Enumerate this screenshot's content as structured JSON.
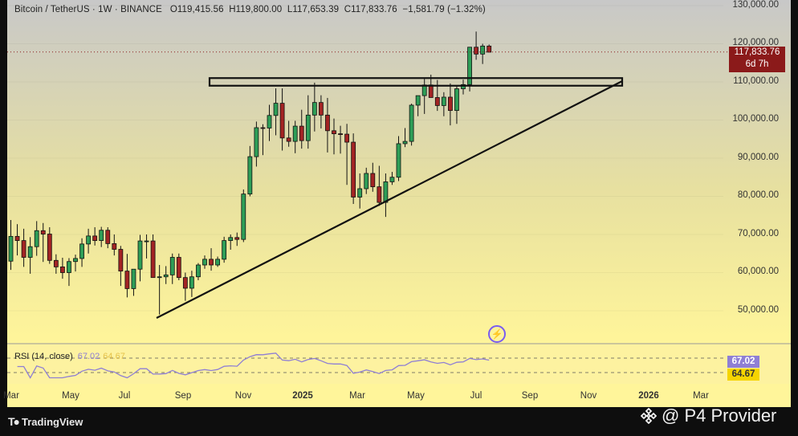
{
  "header": {
    "symbol": "Bitcoin / TetherUS · 1W · BINANCE",
    "open": "O119,415.56",
    "high": "H119,800.00",
    "low": "L117,653.39",
    "close": "C117,833.76",
    "change": "−1,581.79 (−1.32%)"
  },
  "price_tag": {
    "price": "117,833.76",
    "countdown": "6d 7h"
  },
  "rsi": {
    "label": "RSI (14, close)",
    "value": "67.02",
    "ma_value": "64.67",
    "value_num": 67.02,
    "ma_num": 64.67,
    "line_color": "#8f7fd4",
    "ma_color": "#f5d400"
  },
  "x_axis": [
    "Mar",
    "May",
    "Jul",
    "Sep",
    "Nov",
    "2025",
    "Mar",
    "May",
    "Jul",
    "Sep",
    "Nov",
    "2026",
    "Mar"
  ],
  "y_axis": [
    "130,000.00",
    "120,000.00",
    "110,000.00",
    "100,000.00",
    "90,000.00",
    "80,000.00",
    "70,000.00",
    "60,000.00",
    "50,000.00"
  ],
  "footer": {
    "brand": "TradingView",
    "watermark": "@ P4 Provider"
  },
  "colors": {
    "up": "#2e9e57",
    "down": "#a32424",
    "bg_top": "#c8c8c8",
    "bg_bottom": "#fff59a",
    "price_tag": "#8b1a1a"
  },
  "chart_data": {
    "type": "candlestick",
    "interval": "1W",
    "title": "Bitcoin / TetherUS · 1W · BINANCE",
    "ylim": [
      42000,
      133000
    ],
    "x_ticks": [
      "Mar",
      "May",
      "Jul",
      "Sep",
      "Nov",
      "2025",
      "Mar",
      "May",
      "Jul",
      "Sep",
      "Nov",
      "2026",
      "Mar"
    ],
    "candles": [
      {
        "o": 63000,
        "h": 73800,
        "l": 60700,
        "c": 69500
      },
      {
        "o": 69500,
        "h": 72700,
        "l": 64500,
        "c": 68400
      },
      {
        "o": 68400,
        "h": 71500,
        "l": 61500,
        "c": 64000
      },
      {
        "o": 64000,
        "h": 69300,
        "l": 59700,
        "c": 66800
      },
      {
        "o": 66800,
        "h": 73500,
        "l": 64400,
        "c": 71000
      },
      {
        "o": 71000,
        "h": 73000,
        "l": 62800,
        "c": 70100
      },
      {
        "o": 70100,
        "h": 71900,
        "l": 62300,
        "c": 63200
      },
      {
        "o": 63200,
        "h": 64800,
        "l": 59700,
        "c": 61500
      },
      {
        "o": 61500,
        "h": 63900,
        "l": 58400,
        "c": 60000
      },
      {
        "o": 60000,
        "h": 63800,
        "l": 56500,
        "c": 62900
      },
      {
        "o": 62900,
        "h": 64700,
        "l": 60300,
        "c": 63700
      },
      {
        "o": 63700,
        "h": 69000,
        "l": 61500,
        "c": 67500
      },
      {
        "o": 67500,
        "h": 71500,
        "l": 65000,
        "c": 69600
      },
      {
        "o": 69600,
        "h": 71900,
        "l": 67100,
        "c": 68400
      },
      {
        "o": 68400,
        "h": 72000,
        "l": 66700,
        "c": 71100
      },
      {
        "o": 71100,
        "h": 71900,
        "l": 66400,
        "c": 67600
      },
      {
        "o": 67600,
        "h": 70000,
        "l": 64500,
        "c": 66100
      },
      {
        "o": 66100,
        "h": 67000,
        "l": 56500,
        "c": 60400
      },
      {
        "o": 60400,
        "h": 64900,
        "l": 53500,
        "c": 55800
      },
      {
        "o": 55800,
        "h": 60500,
        "l": 53900,
        "c": 60900
      },
      {
        "o": 60900,
        "h": 69900,
        "l": 57700,
        "c": 68300
      },
      {
        "o": 68300,
        "h": 70000,
        "l": 63700,
        "c": 68300
      },
      {
        "o": 68300,
        "h": 70000,
        "l": 59500,
        "c": 58700
      },
      {
        "o": 58700,
        "h": 62000,
        "l": 49000,
        "c": 58900
      },
      {
        "o": 58900,
        "h": 61700,
        "l": 57000,
        "c": 59400
      },
      {
        "o": 59400,
        "h": 65000,
        "l": 57000,
        "c": 64000
      },
      {
        "o": 64000,
        "h": 65000,
        "l": 58000,
        "c": 58700
      },
      {
        "o": 58700,
        "h": 60000,
        "l": 52600,
        "c": 55900
      },
      {
        "o": 55900,
        "h": 60500,
        "l": 53600,
        "c": 58900
      },
      {
        "o": 58900,
        "h": 62500,
        "l": 58000,
        "c": 62000
      },
      {
        "o": 62000,
        "h": 64500,
        "l": 61000,
        "c": 63500
      },
      {
        "o": 63500,
        "h": 66400,
        "l": 60500,
        "c": 62000
      },
      {
        "o": 62000,
        "h": 64200,
        "l": 61500,
        "c": 63500
      },
      {
        "o": 63500,
        "h": 69400,
        "l": 62600,
        "c": 68400
      },
      {
        "o": 68400,
        "h": 70000,
        "l": 66000,
        "c": 69200
      },
      {
        "o": 69200,
        "h": 70500,
        "l": 67000,
        "c": 68700
      },
      {
        "o": 68700,
        "h": 81800,
        "l": 68000,
        "c": 80600
      },
      {
        "o": 80600,
        "h": 93200,
        "l": 80000,
        "c": 90400
      },
      {
        "o": 90400,
        "h": 99600,
        "l": 87800,
        "c": 98000
      },
      {
        "o": 98000,
        "h": 98900,
        "l": 90800,
        "c": 97900
      },
      {
        "o": 97900,
        "h": 104000,
        "l": 94500,
        "c": 101200
      },
      {
        "o": 101200,
        "h": 108300,
        "l": 96000,
        "c": 104400
      },
      {
        "o": 104400,
        "h": 108300,
        "l": 92000,
        "c": 95300
      },
      {
        "o": 95300,
        "h": 99800,
        "l": 93000,
        "c": 94400
      },
      {
        "o": 94400,
        "h": 99800,
        "l": 91300,
        "c": 98400
      },
      {
        "o": 98400,
        "h": 102700,
        "l": 92500,
        "c": 94600
      },
      {
        "o": 94600,
        "h": 106500,
        "l": 92500,
        "c": 101300
      },
      {
        "o": 101300,
        "h": 109800,
        "l": 97000,
        "c": 104600
      },
      {
        "o": 104600,
        "h": 106500,
        "l": 97800,
        "c": 101300
      },
      {
        "o": 101300,
        "h": 105800,
        "l": 91500,
        "c": 97200
      },
      {
        "o": 97200,
        "h": 100400,
        "l": 91000,
        "c": 96400
      },
      {
        "o": 96400,
        "h": 98500,
        "l": 91200,
        "c": 96300
      },
      {
        "o": 96300,
        "h": 99000,
        "l": 83000,
        "c": 94200
      },
      {
        "o": 94200,
        "h": 96500,
        "l": 78000,
        "c": 79800
      },
      {
        "o": 79800,
        "h": 86000,
        "l": 76800,
        "c": 82000
      },
      {
        "o": 82000,
        "h": 87500,
        "l": 80600,
        "c": 86000
      },
      {
        "o": 86000,
        "h": 88800,
        "l": 81200,
        "c": 82500
      },
      {
        "o": 82500,
        "h": 88000,
        "l": 77500,
        "c": 78400
      },
      {
        "o": 78400,
        "h": 86000,
        "l": 74600,
        "c": 83800
      },
      {
        "o": 83800,
        "h": 86400,
        "l": 83000,
        "c": 85000
      },
      {
        "o": 85000,
        "h": 95800,
        "l": 84000,
        "c": 93800
      },
      {
        "o": 93800,
        "h": 97900,
        "l": 92900,
        "c": 94400
      },
      {
        "o": 94400,
        "h": 104300,
        "l": 93300,
        "c": 103900
      },
      {
        "o": 103900,
        "h": 106000,
        "l": 101000,
        "c": 106400
      },
      {
        "o": 106400,
        "h": 110800,
        "l": 101600,
        "c": 109200
      },
      {
        "o": 109200,
        "h": 111900,
        "l": 106000,
        "c": 105900
      },
      {
        "o": 105900,
        "h": 110500,
        "l": 102400,
        "c": 103800
      },
      {
        "o": 103800,
        "h": 107300,
        "l": 101000,
        "c": 106000
      },
      {
        "o": 106000,
        "h": 109600,
        "l": 98600,
        "c": 102500
      },
      {
        "o": 102500,
        "h": 108900,
        "l": 99000,
        "c": 108200
      },
      {
        "o": 108200,
        "h": 110600,
        "l": 106700,
        "c": 109300
      },
      {
        "o": 109300,
        "h": 118900,
        "l": 107500,
        "c": 119100
      },
      {
        "o": 119100,
        "h": 123200,
        "l": 115800,
        "c": 117300
      },
      {
        "o": 117300,
        "h": 120000,
        "l": 114700,
        "c": 119400
      },
      {
        "o": 119400,
        "h": 119800,
        "l": 117700,
        "c": 117800
      }
    ],
    "annotations": [
      {
        "type": "horizontal_band",
        "label": "",
        "from": 109000,
        "to": 111000
      },
      {
        "type": "ascending_trendline",
        "label": ""
      }
    ],
    "current_price": 117833.76,
    "rsi_panel": {
      "name": "RSI (14, close)",
      "value": 67.02,
      "ma": 64.67,
      "levels": [
        70,
        30
      ]
    }
  }
}
